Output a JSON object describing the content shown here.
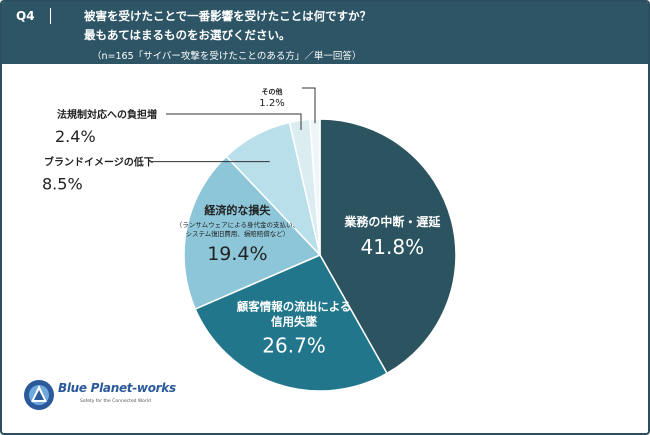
{
  "header": {
    "q_label": "Q4",
    "line1": "被害を受けたことで一番影響を受けたことは何ですか？",
    "line2": "最もあてはまるものをお選びください。",
    "note": "（n=165「サイバー攻撃を受けたことのある方」／単一回答）"
  },
  "chart_data": {
    "type": "pie",
    "start": "12 o'clock, clockwise",
    "slices": [
      {
        "label": "業務の中断・遅延",
        "value": 41.8,
        "value_label": "41.8%",
        "color": "#2c5460",
        "label_position": "inside"
      },
      {
        "label": "顧客情報の流出による信用失墜",
        "label_lines": [
          "顧客情報の流出による",
          "信用失墜"
        ],
        "value": 26.7,
        "value_label": "26.7%",
        "color": "#21768b",
        "label_position": "inside"
      },
      {
        "label": "経済的な損失",
        "sublabel_lines": [
          "（ランサムウェアによる身代金の支払い、",
          "システム復旧費用、損賠賠償など）"
        ],
        "value": 19.4,
        "value_label": "19.4%",
        "color": "#8ec6d9",
        "label_position": "inside"
      },
      {
        "label": "ブランドイメージの低下",
        "value": 8.5,
        "value_label": "8.5%",
        "color": "#b9dfea",
        "label_position": "outside"
      },
      {
        "label": "法規制対応への負担増",
        "value": 2.4,
        "value_label": "2.4%",
        "color": "#dcedf2",
        "label_position": "outside"
      },
      {
        "label": "その他",
        "value": 1.2,
        "value_label": "1.2%",
        "color": "#eef6f9",
        "label_position": "outside"
      }
    ]
  },
  "logo": {
    "name": "Blue Planet-works",
    "tagline": "Safety for the Connected World",
    "color": "#2a5a9a"
  }
}
